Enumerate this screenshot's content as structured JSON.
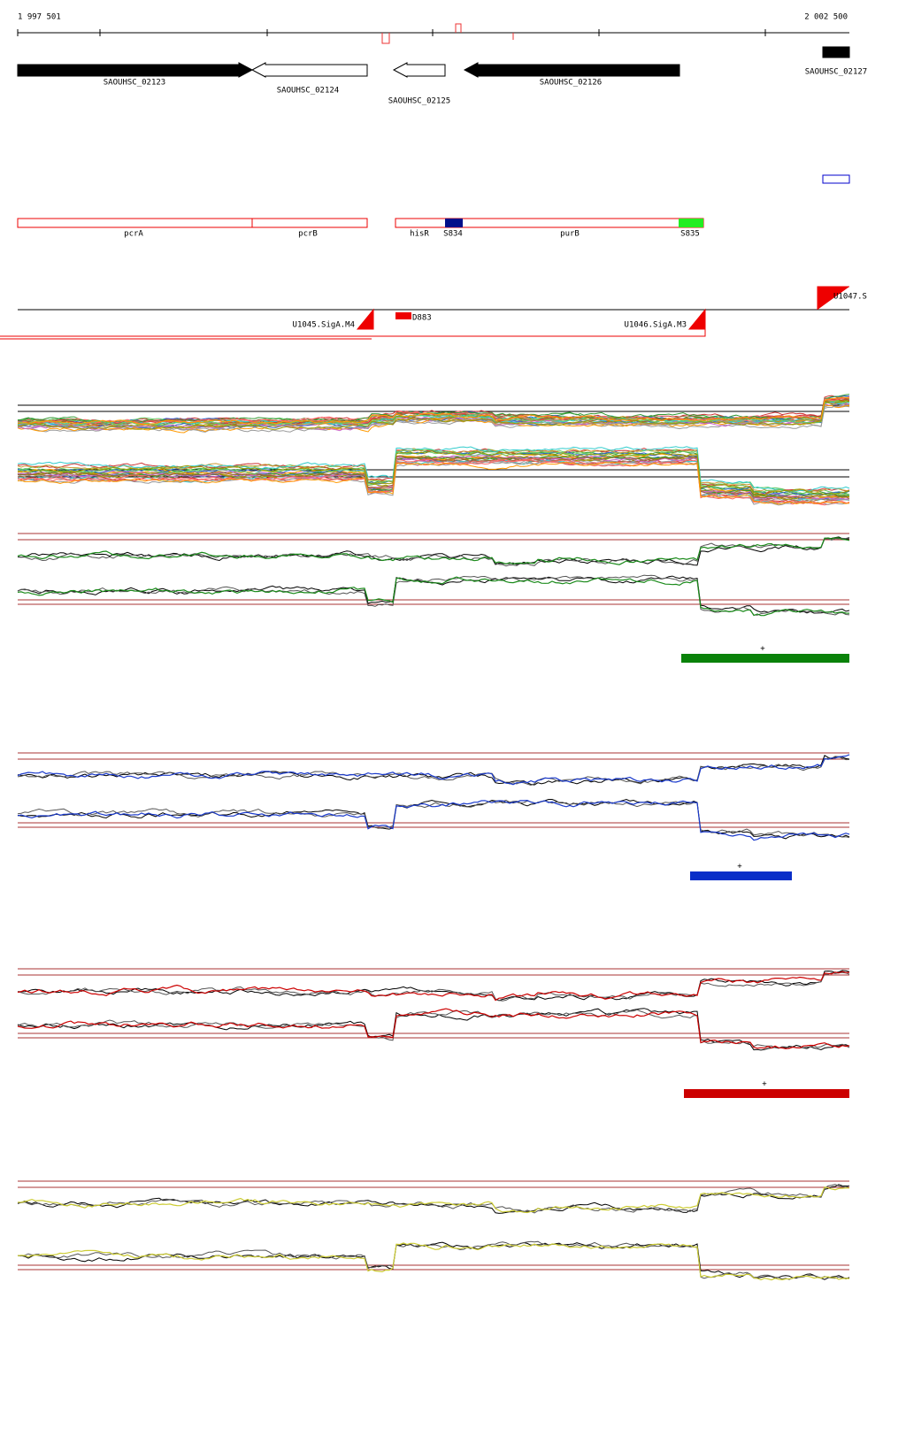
{
  "axis": {
    "start": "1 997 501",
    "end": "2 002 500"
  },
  "genes": [
    "SAOUHSC_02123",
    "SAOUHSC_02124",
    "SAOUHSC_02125",
    "SAOUHSC_02126",
    "SAOUHSC_02127"
  ],
  "features": [
    "pcrA",
    "pcrB",
    "hisR",
    "S834",
    "purB",
    "S835"
  ],
  "promoters": [
    "U1045.SigA.M4",
    "D883",
    "U1046.SigA.M3",
    "U1047.S"
  ],
  "markers": [
    "+",
    "+",
    "+"
  ]
}
